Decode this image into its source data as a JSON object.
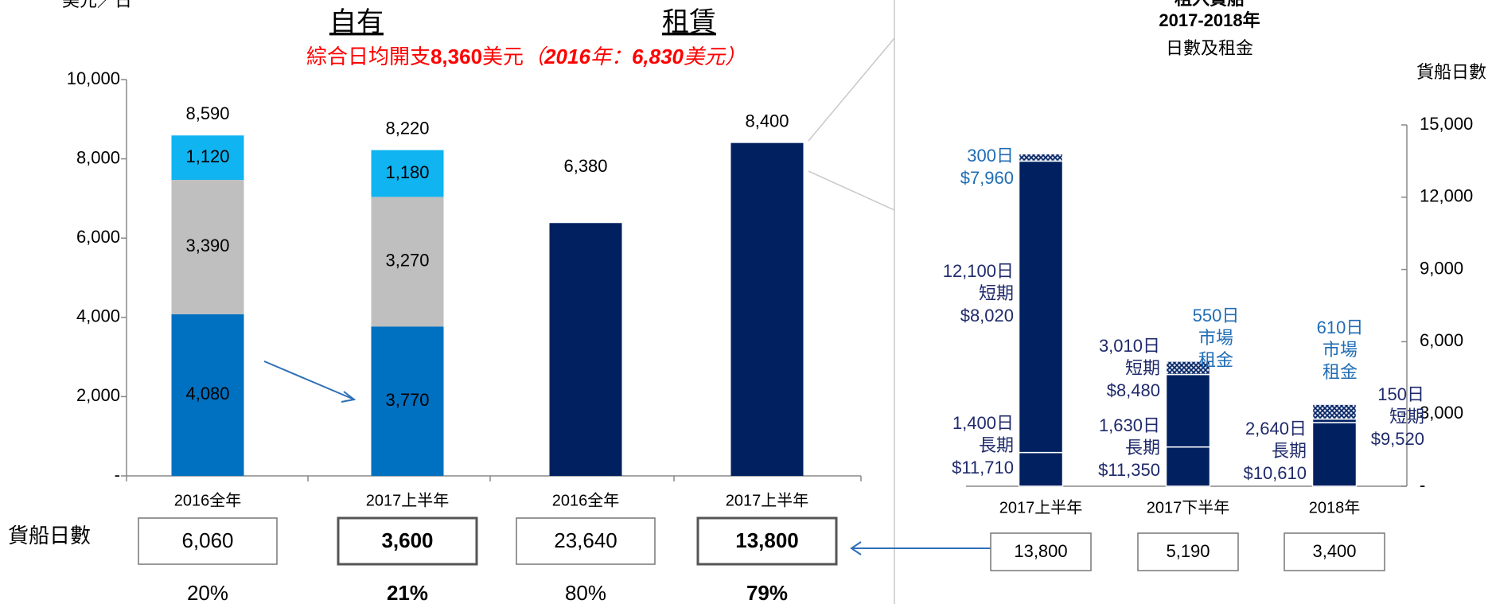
{
  "left_chart": {
    "type": "stacked_bar",
    "y_label": "美元／日",
    "group_labels": [
      "自有",
      "租賃"
    ],
    "subtitle_parts": [
      "綜合日均開支",
      "8,360",
      "美元",
      "（",
      "2016",
      "年：",
      "6,830",
      "美元）"
    ],
    "categories": [
      "2016全年",
      "2017上半年",
      "2016全年",
      "2017上半年"
    ],
    "series": [
      {
        "color": "#0070c0",
        "values": [
          4080,
          3770,
          null,
          null
        ],
        "value_labels": [
          "4,080",
          "3,770",
          null,
          null
        ]
      },
      {
        "color": "#bfbfbf",
        "values": [
          3390,
          3270,
          null,
          null
        ],
        "value_labels": [
          "3,390",
          "3,270",
          null,
          null
        ]
      },
      {
        "color": "#0fb4f0",
        "values": [
          1120,
          1180,
          null,
          null
        ],
        "value_labels": [
          "1,120",
          "1,180",
          null,
          null
        ]
      },
      {
        "color": "#002060",
        "values": [
          null,
          null,
          6380,
          8400
        ],
        "value_labels": null
      }
    ],
    "totals": [
      8590,
      8220,
      6380,
      8400
    ],
    "total_labels": [
      "8,590",
      "8,220",
      "6,380",
      "8,400"
    ],
    "ylim": [
      0,
      10000
    ],
    "yticks": [
      {
        "value": 0,
        "label": "-"
      },
      {
        "value": 2000,
        "label": "2,000"
      },
      {
        "value": 4000,
        "label": "4,000"
      },
      {
        "value": 6000,
        "label": "6,000"
      },
      {
        "value": 8000,
        "label": "8,000"
      },
      {
        "value": 10000,
        "label": "10,000"
      }
    ],
    "days_label": "貨船日數",
    "days": [
      6060,
      3600,
      23640,
      13800
    ],
    "days_labels": [
      "6,060",
      "3,600",
      "23,640",
      "13,800"
    ],
    "shares": [
      20,
      21,
      80,
      79
    ],
    "share_labels": [
      "20%",
      "21%",
      "80%",
      "79%"
    ],
    "bold": [
      false,
      true,
      false,
      true
    ]
  },
  "right_chart": {
    "type": "stacked_bar",
    "title_lines": [
      "租入貨船",
      "2017-2018年",
      "日數及租金"
    ],
    "y2_label": "貨船日數",
    "categories": [
      "2017上半年",
      "2017下半年",
      "2018年"
    ],
    "series": [
      {
        "name": "長期",
        "color": "#002060",
        "name_shown": [
          true,
          true,
          true
        ],
        "values": [
          1400,
          1630,
          2640
        ],
        "value_labels": [
          "1,400日",
          "1,630日",
          "2,640日"
        ],
        "rates": [
          11710,
          11350,
          10610
        ],
        "rate_labels": [
          "$11,710",
          "$11,350",
          "$10,610"
        ]
      },
      {
        "name": "短期",
        "color": "#002060",
        "name_shown": [
          true,
          true,
          true
        ],
        "values": [
          12100,
          3010,
          150
        ],
        "value_labels": [
          "12,100日",
          "3,010日",
          "150日"
        ],
        "rates": [
          8020,
          8480,
          9520
        ],
        "rate_labels": [
          "$8,020",
          "$8,480",
          "$9,520"
        ]
      },
      {
        "name_lines": [
          "市場",
          "租金"
        ],
        "color": "#002060",
        "hatched": true,
        "name_shown": [
          false,
          true,
          true
        ],
        "values": [
          300,
          550,
          610
        ],
        "value_labels": [
          "300日",
          "550日",
          "610日"
        ],
        "rates": [
          7960,
          null,
          null
        ],
        "rate_labels": [
          "$7,960",
          null,
          null
        ]
      }
    ],
    "y2lim": [
      0,
      15000
    ],
    "y2ticks": [
      {
        "value": 0,
        "label": "-"
      },
      {
        "value": 3000,
        "label": "3,000"
      },
      {
        "value": 6000,
        "label": "6,000"
      },
      {
        "value": 9000,
        "label": "9,000"
      },
      {
        "value": 12000,
        "label": "12,000"
      },
      {
        "value": 15000,
        "label": "15,000"
      }
    ],
    "days": [
      13800,
      5190,
      3400
    ],
    "days_labels": [
      "13,800",
      "5,190",
      "3,400"
    ]
  }
}
